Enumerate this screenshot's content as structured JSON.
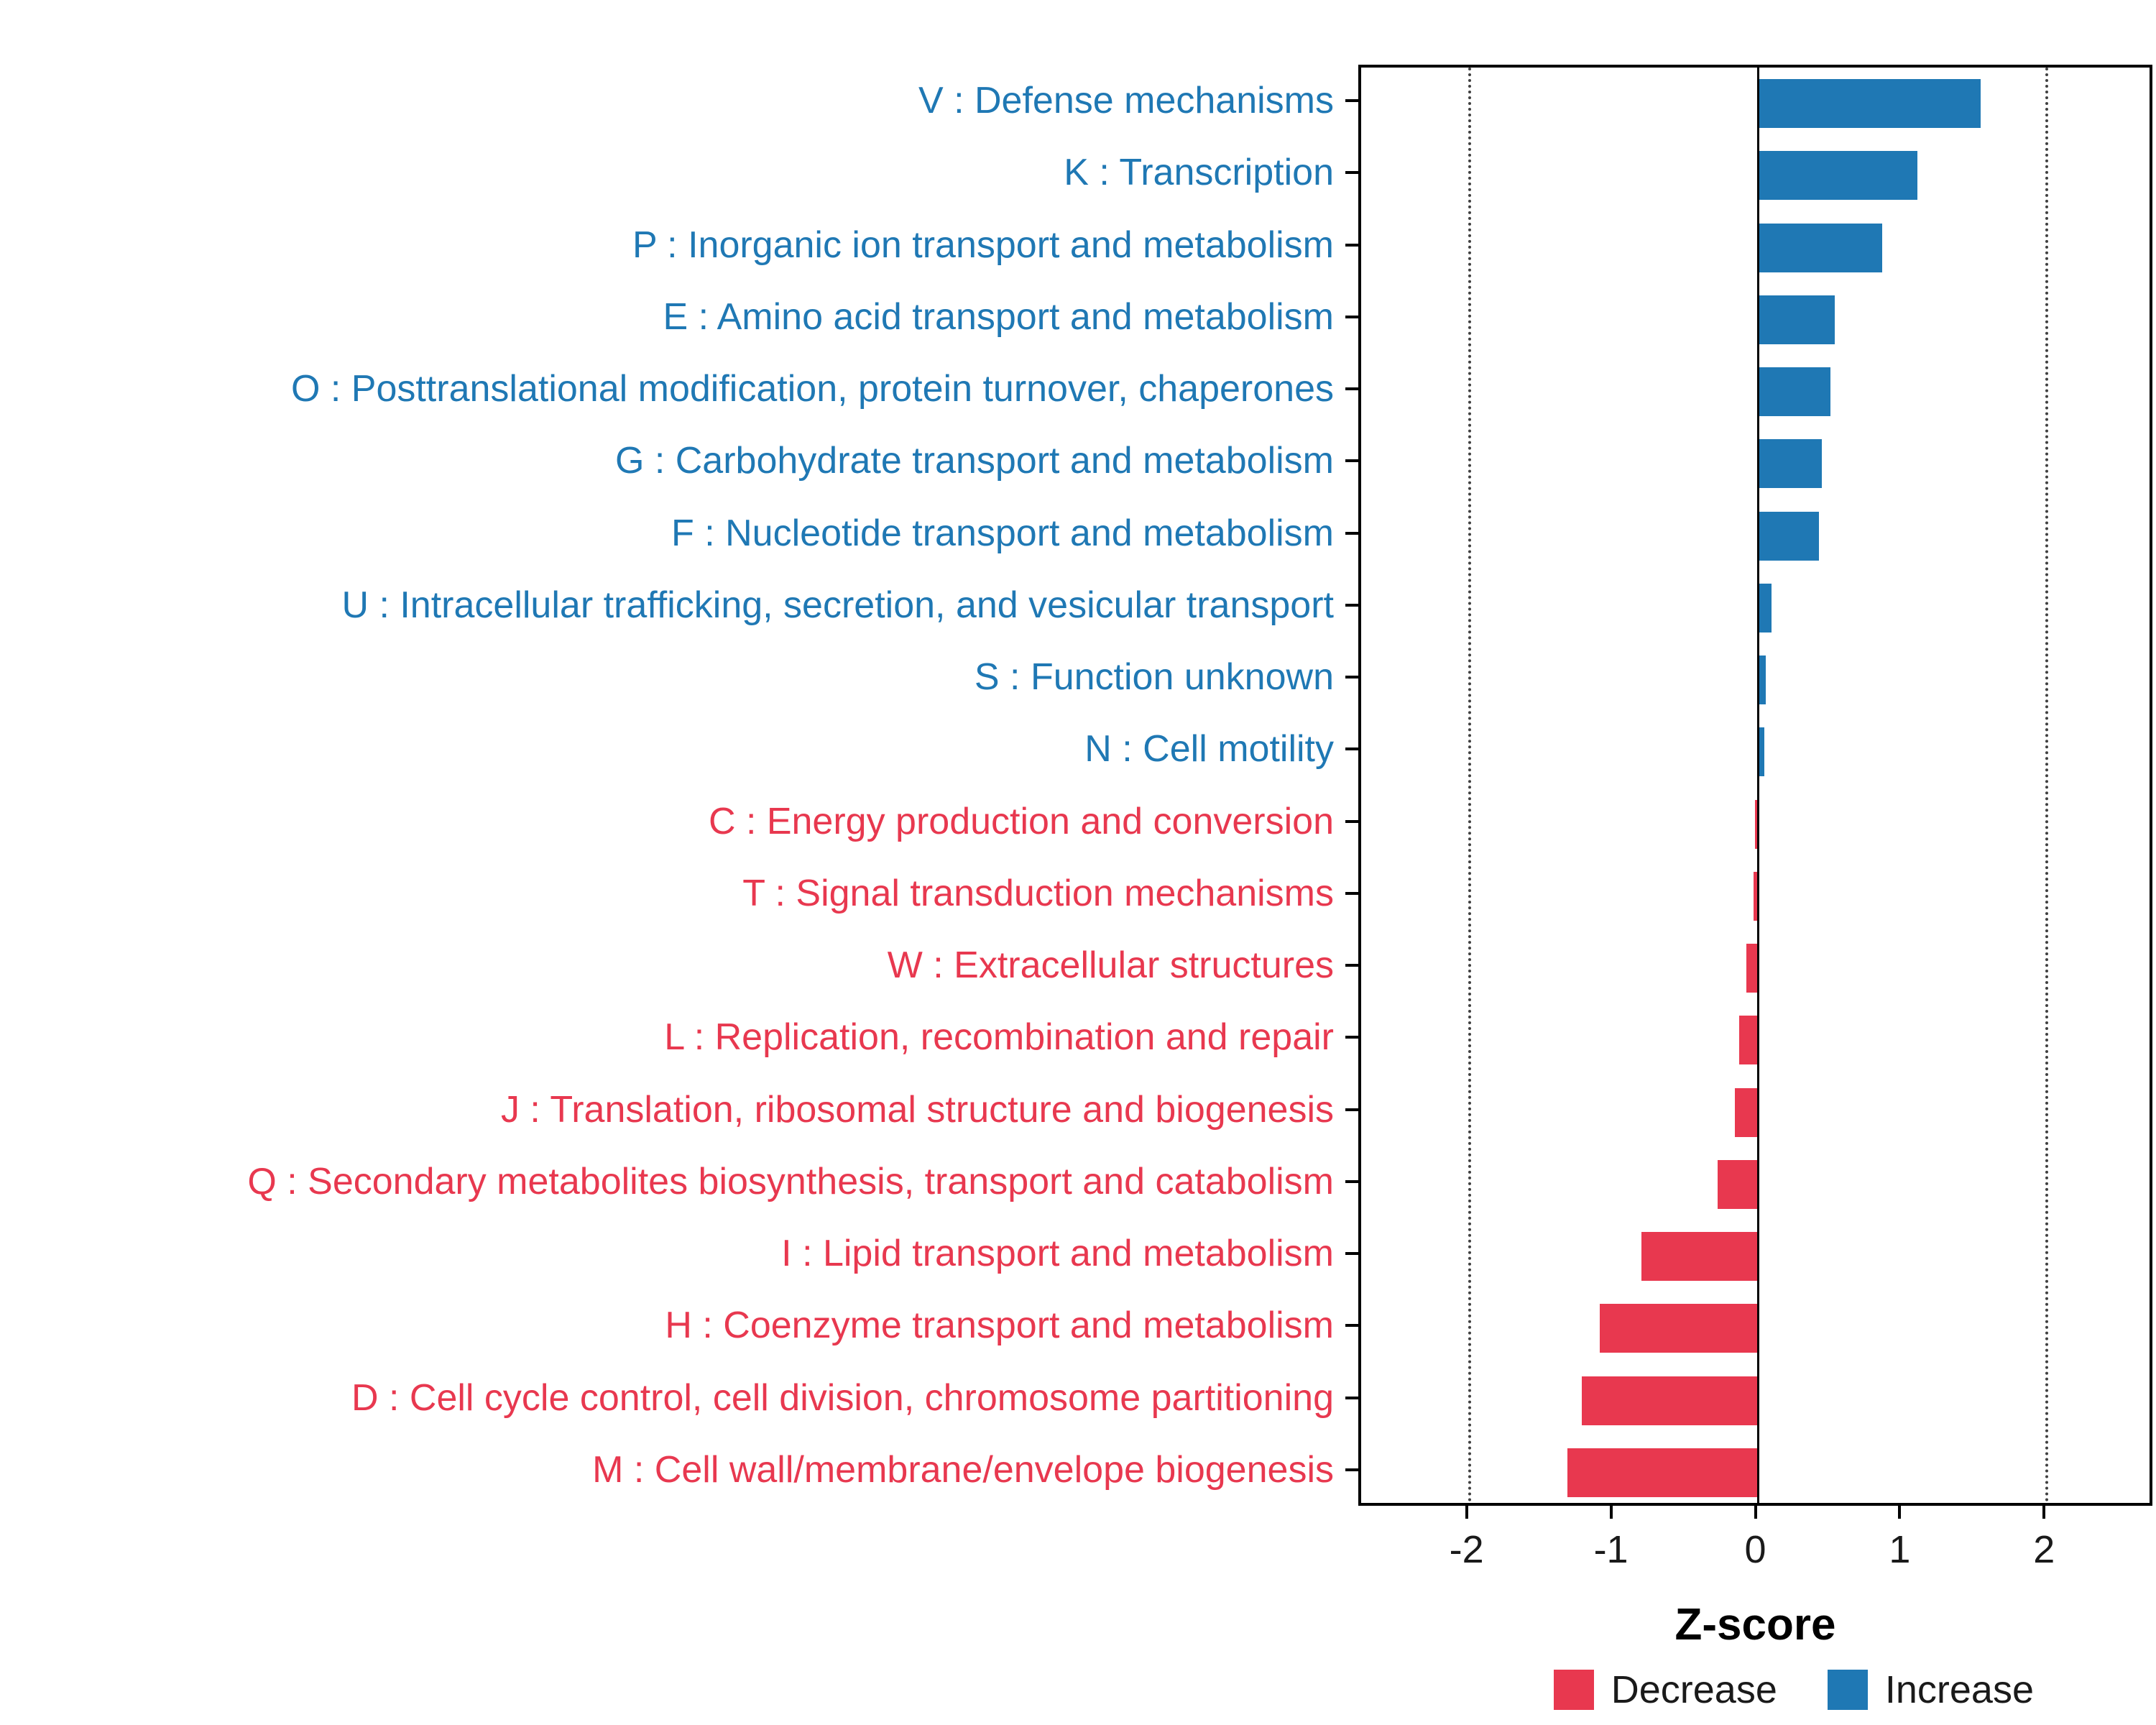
{
  "chart_data": {
    "type": "bar",
    "orientation": "horizontal",
    "title": "",
    "xlabel": "Z-score",
    "ylabel": "",
    "xlim": [
      -2.75,
      2.75
    ],
    "xticks": [
      -2,
      -1,
      0,
      1,
      2
    ],
    "grid": "off",
    "reference_lines": {
      "dotted": [
        -2,
        2
      ],
      "solid": [
        0
      ]
    },
    "colors": {
      "Increase": "#1F78B4",
      "Decrease": "#E8384F"
    },
    "legend": {
      "position": "bottom-right",
      "entries": [
        {
          "label": "Decrease",
          "color": "#E8384F"
        },
        {
          "label": "Increase",
          "color": "#1F78B4"
        }
      ]
    },
    "categories": [
      "V : Defense mechanisms",
      "K : Transcription",
      "P : Inorganic ion transport and metabolism",
      "E : Amino acid transport and metabolism",
      "O : Posttranslational modification, protein turnover, chaperones",
      "G : Carbohydrate transport and metabolism",
      "F : Nucleotide transport and metabolism",
      "U : Intracellular trafficking, secretion, and vesicular transport",
      "S : Function unknown",
      "N : Cell motility",
      "C : Energy production and conversion",
      "T : Signal transduction mechanisms",
      "W : Extracellular structures",
      "L : Replication, recombination and repair",
      "J : Translation, ribosomal structure and biogenesis",
      "Q : Secondary metabolites biosynthesis, transport and catabolism",
      "I : Lipid transport and metabolism",
      "H : Coenzyme transport and metabolism",
      "D : Cell cycle control, cell division, chromosome partitioning",
      "M : Cell wall/membrane/envelope biogenesis"
    ],
    "values": [
      1.54,
      1.1,
      0.86,
      0.53,
      0.5,
      0.44,
      0.42,
      0.09,
      0.05,
      0.04,
      -0.02,
      -0.03,
      -0.08,
      -0.13,
      -0.16,
      -0.28,
      -0.81,
      -1.1,
      -1.22,
      -1.32
    ],
    "direction": [
      "Increase",
      "Increase",
      "Increase",
      "Increase",
      "Increase",
      "Increase",
      "Increase",
      "Increase",
      "Increase",
      "Increase",
      "Decrease",
      "Decrease",
      "Decrease",
      "Decrease",
      "Decrease",
      "Decrease",
      "Decrease",
      "Decrease",
      "Decrease",
      "Decrease"
    ]
  }
}
